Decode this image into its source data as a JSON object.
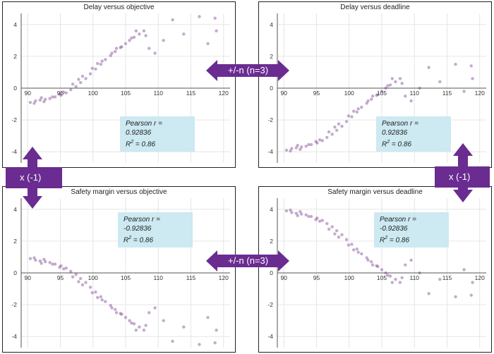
{
  "accent_color": "#6a2c91",
  "point_color": "#6b2d84",
  "stat_box_color": "#cde9f2",
  "transforms": {
    "top_horizontal": "+/-n (n=3)",
    "bottom_horizontal": "+/-n (n=3)",
    "left_vertical": "x (-1)",
    "right_vertical": "x (-1)"
  },
  "arrow_icons": [
    "double-arrow-horizontal-icon",
    "double-arrow-vertical-icon"
  ],
  "chart_data": [
    {
      "type": "scatter",
      "title": "Delay versus objective",
      "xlabel": "",
      "ylabel": "",
      "xlim": [
        89,
        121
      ],
      "ylim": [
        -4.7,
        4.7
      ],
      "xticks": [
        90,
        95,
        100,
        105,
        110,
        115,
        120
      ],
      "yticks": [
        -4,
        -2,
        0,
        2,
        4
      ],
      "grid": true,
      "pearson_label": "Pearson r = 0.92836",
      "r2_label": "R",
      "r2_sup": "2",
      "r2_value": " = 0.86",
      "x": [
        90.4,
        91.2,
        91.9,
        92.7,
        93.4,
        94.2,
        95.1,
        95.9,
        96.6,
        97.4,
        98.1,
        98.9,
        99.6,
        100.4,
        101.2,
        101.9,
        102.7,
        103.4,
        104.2,
        105.0,
        105.6,
        106.3,
        107.1,
        107.8,
        91.0,
        92.5,
        93.8,
        95.5,
        96.9,
        98.4,
        99.9,
        101.4,
        102.9,
        104.4,
        105.9,
        92.1,
        94.9,
        97.8,
        100.7,
        103.6,
        106.6,
        108.1,
        108.6,
        109.5,
        110.8,
        112.2,
        113.9,
        116.3,
        117.6,
        118.7,
        118.9
      ],
      "y": [
        -0.9,
        -0.8,
        -0.75,
        -0.7,
        -0.65,
        -0.55,
        -0.45,
        -0.3,
        -0.1,
        0.1,
        0.35,
        0.6,
        0.9,
        1.2,
        1.5,
        1.8,
        2.05,
        2.3,
        2.55,
        2.8,
        3.0,
        3.2,
        3.4,
        3.6,
        -0.95,
        -0.85,
        -0.55,
        -0.25,
        0.25,
        0.75,
        1.25,
        1.7,
        2.2,
        2.6,
        3.15,
        -0.6,
        -0.35,
        0.55,
        1.55,
        2.5,
        3.6,
        3.3,
        2.5,
        2.2,
        3.0,
        4.3,
        3.4,
        4.5,
        2.8,
        4.4,
        3.6
      ]
    },
    {
      "type": "scatter",
      "title": "Delay versus deadline",
      "xlabel": "",
      "ylabel": "",
      "xlim": [
        89,
        121
      ],
      "ylim": [
        -4.7,
        4.7
      ],
      "xticks": [
        90,
        95,
        100,
        105,
        110,
        115,
        120
      ],
      "yticks": [
        -4,
        -2,
        0,
        2,
        4
      ],
      "grid": true,
      "pearson_label": "Pearson r = 0.92836",
      "r2_label": "R",
      "r2_sup": "2",
      "r2_value": " = 0.86",
      "x": [
        90.4,
        91.2,
        91.9,
        92.7,
        93.4,
        94.2,
        95.1,
        95.9,
        96.6,
        97.4,
        98.1,
        98.9,
        99.6,
        100.4,
        101.2,
        101.9,
        102.7,
        103.4,
        104.2,
        105.0,
        105.6,
        106.3,
        107.1,
        107.8,
        91.0,
        92.5,
        93.8,
        95.5,
        96.9,
        98.4,
        99.9,
        101.4,
        102.9,
        104.4,
        105.9,
        92.1,
        94.9,
        97.8,
        100.7,
        103.6,
        106.6,
        108.1,
        108.6,
        109.5,
        110.8,
        112.2,
        113.9,
        116.3,
        117.6,
        118.7,
        118.9
      ],
      "y": [
        -3.9,
        -3.8,
        -3.75,
        -3.7,
        -3.65,
        -3.55,
        -3.45,
        -3.3,
        -3.1,
        -2.9,
        -2.65,
        -2.4,
        -2.1,
        -1.8,
        -1.5,
        -1.2,
        -0.95,
        -0.7,
        -0.45,
        -0.2,
        0.0,
        0.2,
        0.4,
        0.6,
        -3.95,
        -3.85,
        -3.55,
        -3.25,
        -2.75,
        -2.25,
        -1.75,
        -1.3,
        -0.8,
        -0.4,
        0.15,
        -3.6,
        -3.35,
        -2.45,
        -1.45,
        -0.5,
        0.6,
        0.3,
        -0.5,
        -0.8,
        0.0,
        1.3,
        0.4,
        1.5,
        -0.2,
        1.4,
        0.6
      ]
    },
    {
      "type": "scatter",
      "title": "Safety margin versus objective",
      "xlabel": "",
      "ylabel": "",
      "xlim": [
        89,
        121
      ],
      "ylim": [
        -4.7,
        4.7
      ],
      "xticks": [
        90,
        95,
        100,
        105,
        110,
        115,
        120
      ],
      "yticks": [
        -4,
        -2,
        0,
        2,
        4
      ],
      "grid": true,
      "pearson_label": "Pearson r = -0.92836",
      "r2_label": "R",
      "r2_sup": "2",
      "r2_value": " = 0.86",
      "x": [
        90.4,
        91.2,
        91.9,
        92.7,
        93.4,
        94.2,
        95.1,
        95.9,
        96.6,
        97.4,
        98.1,
        98.9,
        99.6,
        100.4,
        101.2,
        101.9,
        102.7,
        103.4,
        104.2,
        105.0,
        105.6,
        106.3,
        107.1,
        107.8,
        91.0,
        92.5,
        93.8,
        95.5,
        96.9,
        98.4,
        99.9,
        101.4,
        102.9,
        104.4,
        105.9,
        92.1,
        94.9,
        97.8,
        100.7,
        103.6,
        106.6,
        108.1,
        108.6,
        109.5,
        110.8,
        112.2,
        113.9,
        116.3,
        117.6,
        118.7,
        118.9
      ],
      "y": [
        0.9,
        0.8,
        0.75,
        0.7,
        0.65,
        0.55,
        0.45,
        0.3,
        0.1,
        -0.1,
        -0.35,
        -0.6,
        -0.9,
        -1.2,
        -1.5,
        -1.8,
        -2.05,
        -2.3,
        -2.55,
        -2.8,
        -3.0,
        -3.2,
        -3.4,
        -3.6,
        0.95,
        0.85,
        0.55,
        0.25,
        -0.25,
        -0.75,
        -1.25,
        -1.7,
        -2.2,
        -2.6,
        -3.15,
        0.6,
        0.35,
        -0.55,
        -1.55,
        -2.5,
        -3.6,
        -3.3,
        -2.5,
        -2.2,
        -3.0,
        -4.3,
        -3.4,
        -4.5,
        -2.8,
        -4.4,
        -3.6
      ]
    },
    {
      "type": "scatter",
      "title": "Safety margin versus deadline",
      "xlabel": "",
      "ylabel": "",
      "xlim": [
        89,
        121
      ],
      "ylim": [
        -4.7,
        4.7
      ],
      "xticks": [
        90,
        95,
        100,
        105,
        110,
        115,
        120
      ],
      "yticks": [
        -4,
        -2,
        0,
        2,
        4
      ],
      "grid": true,
      "pearson_label": "Pearson r = -0.92836",
      "r2_label": "R",
      "r2_sup": "2",
      "r2_value": " = 0.86",
      "x": [
        90.4,
        91.2,
        91.9,
        92.7,
        93.4,
        94.2,
        95.1,
        95.9,
        96.6,
        97.4,
        98.1,
        98.9,
        99.6,
        100.4,
        101.2,
        101.9,
        102.7,
        103.4,
        104.2,
        105.0,
        105.6,
        106.3,
        107.1,
        107.8,
        91.0,
        92.5,
        93.8,
        95.5,
        96.9,
        98.4,
        99.9,
        101.4,
        102.9,
        104.4,
        105.9,
        92.1,
        94.9,
        97.8,
        100.7,
        103.6,
        106.6,
        108.1,
        108.6,
        109.5,
        110.8,
        112.2,
        113.9,
        116.3,
        117.6,
        118.7,
        118.9
      ],
      "y": [
        3.9,
        3.8,
        3.75,
        3.7,
        3.65,
        3.55,
        3.45,
        3.3,
        3.1,
        2.9,
        2.65,
        2.4,
        2.1,
        1.8,
        1.5,
        1.2,
        0.95,
        0.7,
        0.45,
        0.2,
        0.0,
        -0.2,
        -0.4,
        -0.6,
        3.95,
        3.85,
        3.55,
        3.25,
        2.75,
        2.25,
        1.75,
        1.3,
        0.8,
        0.4,
        -0.15,
        3.6,
        3.35,
        2.45,
        1.45,
        0.5,
        -0.6,
        -0.3,
        0.5,
        0.8,
        0.0,
        -1.3,
        -0.4,
        -1.5,
        0.2,
        -1.4,
        -0.6
      ]
    }
  ]
}
